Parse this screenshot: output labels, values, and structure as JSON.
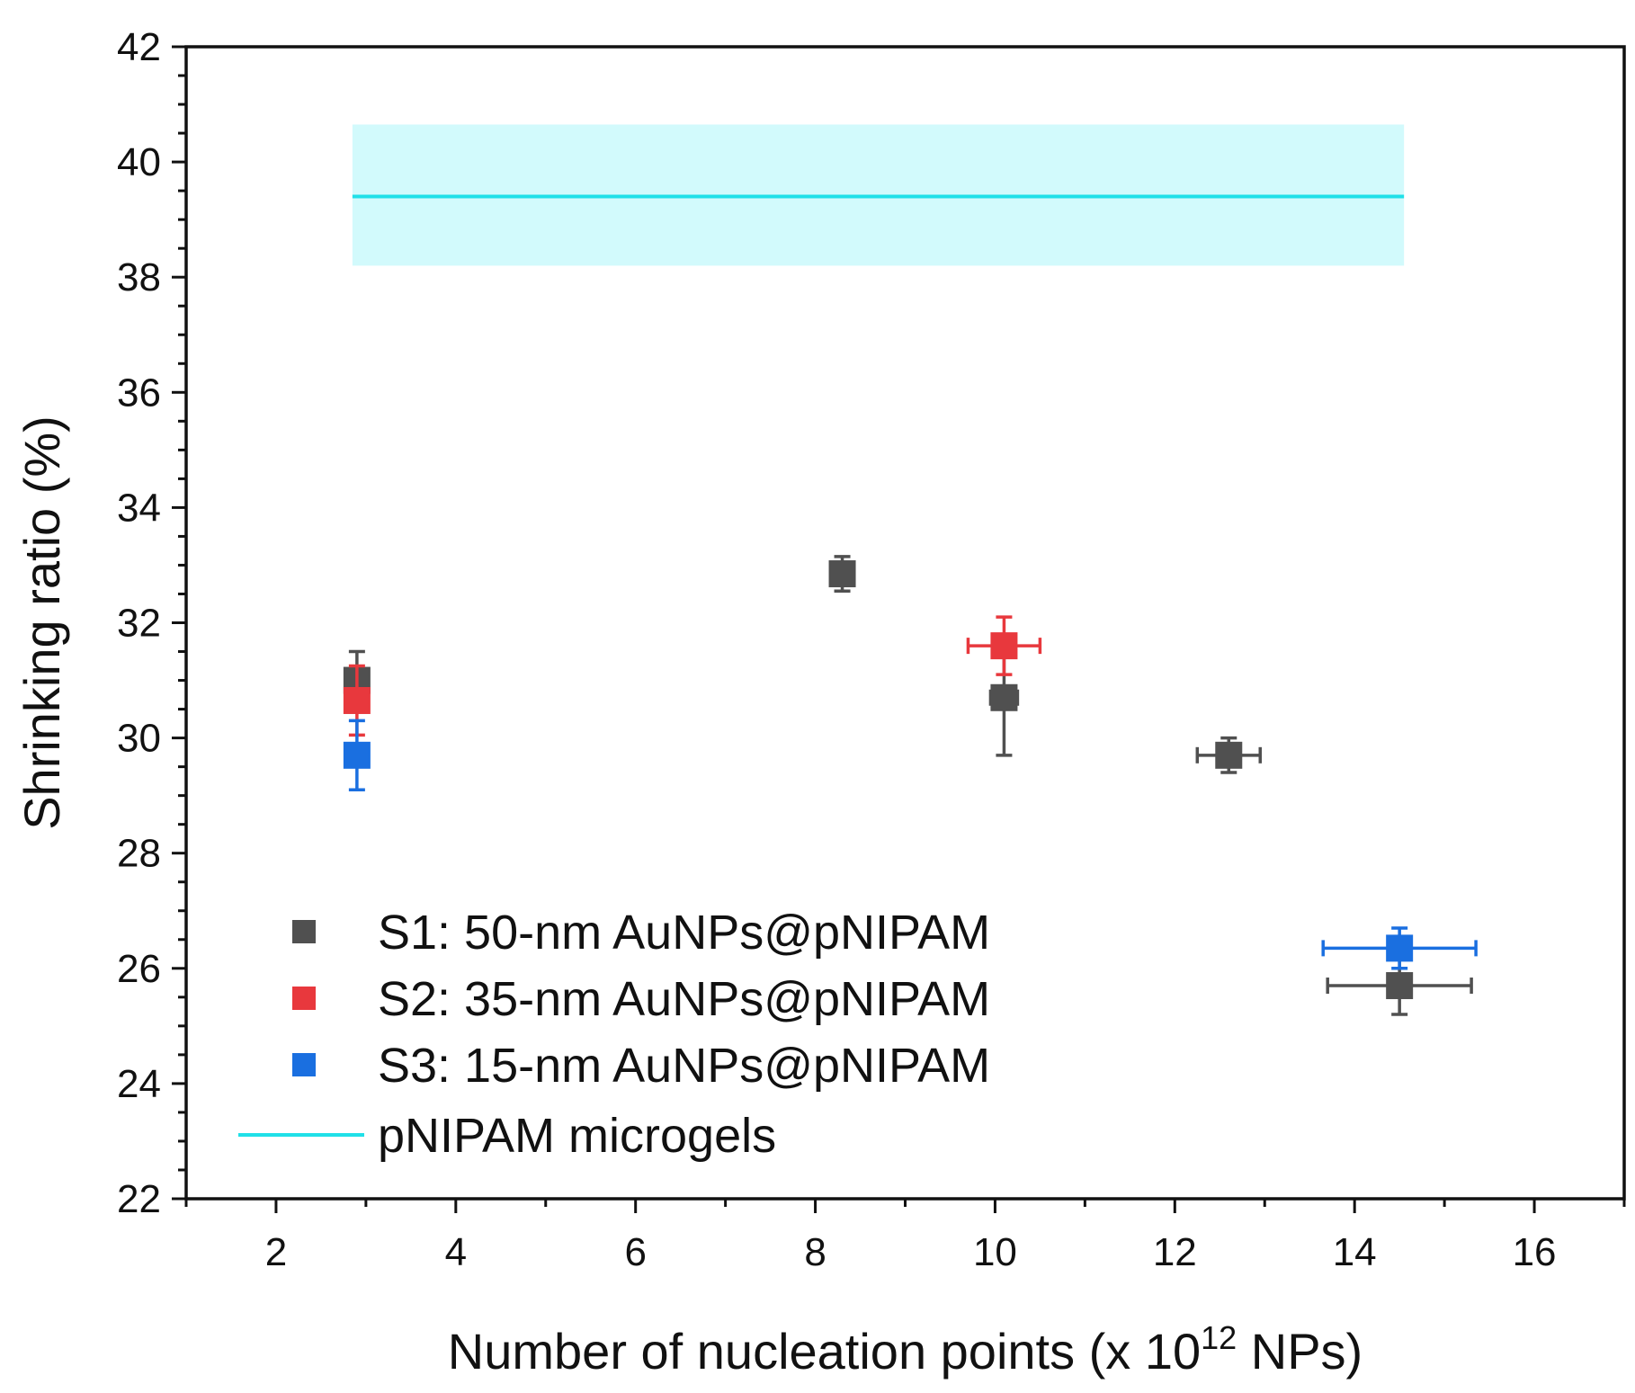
{
  "chart_data": {
    "type": "scatter",
    "title": "",
    "xlabel_main": "Number of nucleation points (x 10",
    "xlabel_sup": "12",
    "xlabel_end": " NPs)",
    "ylabel": "Shrinking ratio (%)",
    "xlim": [
      1,
      17
    ],
    "ylim": [
      22,
      42
    ],
    "x_ticks": [
      2,
      4,
      6,
      8,
      10,
      12,
      14,
      16
    ],
    "y_ticks": [
      22,
      24,
      26,
      28,
      30,
      32,
      34,
      36,
      38,
      40,
      42
    ],
    "grid": false,
    "legend_position": "bottom-left",
    "series": [
      {
        "name": "S1: 50-nm AuNPs@pNIPAM",
        "color": "#505050",
        "points": [
          {
            "x": 2.9,
            "y": 31.0,
            "xerr": 0.0,
            "yerr": 0.5
          },
          {
            "x": 8.3,
            "y": 32.85,
            "xerr": 0.1,
            "yerr": 0.3
          },
          {
            "x": 10.1,
            "y": 30.7,
            "xerr": 0.15,
            "yerr": 1.0
          },
          {
            "x": 12.6,
            "y": 29.7,
            "xerr": 0.35,
            "yerr": 0.3
          },
          {
            "x": 14.5,
            "y": 25.7,
            "xerr": 0.8,
            "yerr": 0.5
          }
        ]
      },
      {
        "name": "S2: 35-nm AuNPs@pNIPAM",
        "color": "#e8383d",
        "points": [
          {
            "x": 2.9,
            "y": 30.65,
            "xerr": 0.05,
            "yerr": 0.6
          },
          {
            "x": 10.1,
            "y": 31.6,
            "xerr": 0.4,
            "yerr": 0.5
          }
        ]
      },
      {
        "name": "S3: 15-nm AuNPs@pNIPAM",
        "color": "#1a6fe0",
        "points": [
          {
            "x": 2.9,
            "y": 29.7,
            "xerr": 0.05,
            "yerr": 0.6
          },
          {
            "x": 14.5,
            "y": 26.35,
            "xerr": 0.85,
            "yerr": 0.35
          }
        ]
      }
    ],
    "reference": {
      "name": "pNIPAM microgels",
      "color": "#20e0e8",
      "band_color": "#d2fafc",
      "value": 39.4,
      "band": [
        38.2,
        40.65
      ],
      "x_range": [
        2.85,
        14.55
      ]
    }
  }
}
